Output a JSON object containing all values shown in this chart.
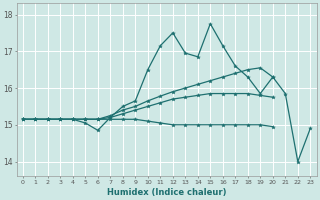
{
  "xlabel": "Humidex (Indice chaleur)",
  "xlim": [
    -0.5,
    23.5
  ],
  "ylim": [
    13.6,
    18.3
  ],
  "yticks": [
    14,
    15,
    16,
    17,
    18
  ],
  "xticks": [
    0,
    1,
    2,
    3,
    4,
    5,
    6,
    7,
    8,
    9,
    10,
    11,
    12,
    13,
    14,
    15,
    16,
    17,
    18,
    19,
    20,
    21,
    22,
    23
  ],
  "bg_color": "#cfe8e5",
  "line_color": "#1e7070",
  "grid_color": "#ffffff",
  "lines": [
    {
      "x": [
        0,
        1,
        2,
        3,
        4,
        5,
        6,
        7,
        8,
        9,
        10,
        11,
        12,
        13,
        14,
        15,
        16,
        17,
        18,
        19,
        20,
        21,
        22,
        23
      ],
      "y": [
        15.15,
        15.15,
        15.15,
        15.15,
        15.15,
        15.05,
        14.85,
        15.2,
        15.5,
        15.65,
        16.5,
        17.15,
        17.5,
        16.95,
        16.85,
        17.75,
        17.15,
        16.6,
        16.3,
        15.85,
        16.3,
        15.85,
        14.0,
        14.9
      ]
    },
    {
      "x": [
        0,
        1,
        2,
        3,
        4,
        5,
        6,
        7,
        8,
        9,
        10,
        11,
        12,
        13,
        14,
        15,
        16,
        17,
        18,
        19,
        20
      ],
      "y": [
        15.15,
        15.15,
        15.15,
        15.15,
        15.15,
        15.15,
        15.15,
        15.25,
        15.4,
        15.5,
        15.65,
        15.78,
        15.9,
        16.0,
        16.1,
        16.2,
        16.3,
        16.4,
        16.5,
        16.55,
        16.3
      ]
    },
    {
      "x": [
        0,
        1,
        2,
        3,
        4,
        5,
        6,
        7,
        8,
        9,
        10,
        11,
        12,
        13,
        14,
        15,
        16,
        17,
        18,
        19,
        20
      ],
      "y": [
        15.15,
        15.15,
        15.15,
        15.15,
        15.15,
        15.15,
        15.15,
        15.2,
        15.3,
        15.4,
        15.5,
        15.6,
        15.7,
        15.75,
        15.8,
        15.85,
        15.85,
        15.85,
        15.85,
        15.8,
        15.75
      ]
    },
    {
      "x": [
        0,
        1,
        2,
        3,
        4,
        5,
        6,
        7,
        8,
        9,
        10,
        11,
        12,
        13,
        14,
        15,
        16,
        17,
        18,
        19,
        20
      ],
      "y": [
        15.15,
        15.15,
        15.15,
        15.15,
        15.15,
        15.15,
        15.15,
        15.15,
        15.15,
        15.15,
        15.1,
        15.05,
        15.0,
        15.0,
        15.0,
        15.0,
        15.0,
        15.0,
        15.0,
        15.0,
        14.95
      ]
    }
  ]
}
